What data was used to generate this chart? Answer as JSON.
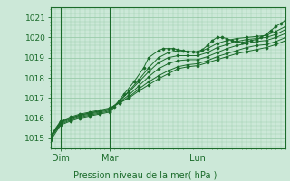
{
  "title": "",
  "xlabel": "Pression niveau de la mer( hPa )",
  "bg_color": "#cce8d8",
  "grid_color": "#99ccaa",
  "line_color": "#1a6b2a",
  "ylim": [
    1014.5,
    1021.5
  ],
  "xlim": [
    0,
    96
  ],
  "yticks": [
    1015,
    1016,
    1017,
    1018,
    1019,
    1020,
    1021
  ],
  "day_labels": [
    [
      "Dim",
      4
    ],
    [
      "Mar",
      24
    ],
    [
      "Lun",
      60
    ]
  ],
  "day_vlines": [
    4,
    24,
    60
  ],
  "series": [
    [
      0,
      1014.9,
      4,
      1015.65,
      8,
      1015.85,
      12,
      1016.0,
      16,
      1016.1,
      20,
      1016.2,
      24,
      1016.3,
      26,
      1016.55,
      28,
      1016.9,
      30,
      1017.2,
      34,
      1017.8,
      38,
      1018.5,
      40,
      1019.0,
      44,
      1019.35,
      46,
      1019.45,
      48,
      1019.45,
      50,
      1019.45,
      52,
      1019.4,
      54,
      1019.35,
      56,
      1019.3,
      58,
      1019.3,
      60,
      1019.3,
      62,
      1019.4,
      64,
      1019.6,
      66,
      1019.85,
      68,
      1020.0,
      70,
      1020.0,
      72,
      1019.95,
      74,
      1019.85,
      76,
      1019.8,
      78,
      1019.75,
      80,
      1019.8,
      82,
      1019.85,
      84,
      1019.9,
      86,
      1020.0,
      88,
      1020.15,
      90,
      1020.35,
      92,
      1020.55,
      94,
      1020.7,
      96,
      1020.85
    ],
    [
      0,
      1015.0,
      4,
      1015.7,
      8,
      1015.9,
      12,
      1016.05,
      16,
      1016.15,
      20,
      1016.25,
      24,
      1016.35,
      28,
      1016.85,
      32,
      1017.35,
      36,
      1017.9,
      40,
      1018.5,
      44,
      1019.0,
      48,
      1019.25,
      52,
      1019.35,
      56,
      1019.3,
      60,
      1019.25,
      64,
      1019.45,
      68,
      1019.7,
      72,
      1019.85,
      76,
      1019.95,
      80,
      1020.0,
      84,
      1020.05,
      88,
      1020.1,
      92,
      1020.3,
      96,
      1020.55
    ],
    [
      0,
      1015.05,
      4,
      1015.75,
      8,
      1015.95,
      12,
      1016.1,
      16,
      1016.2,
      20,
      1016.3,
      24,
      1016.4,
      28,
      1016.85,
      32,
      1017.3,
      36,
      1017.8,
      40,
      1018.3,
      44,
      1018.75,
      48,
      1019.0,
      52,
      1019.1,
      56,
      1019.1,
      60,
      1019.1,
      64,
      1019.25,
      68,
      1019.5,
      72,
      1019.65,
      76,
      1019.8,
      80,
      1019.9,
      84,
      1019.95,
      88,
      1020.0,
      92,
      1020.15,
      96,
      1020.4
    ],
    [
      0,
      1015.1,
      4,
      1015.8,
      8,
      1016.0,
      12,
      1016.15,
      16,
      1016.25,
      20,
      1016.35,
      24,
      1016.45,
      28,
      1016.8,
      32,
      1017.15,
      36,
      1017.6,
      40,
      1018.05,
      44,
      1018.45,
      48,
      1018.7,
      52,
      1018.85,
      56,
      1018.9,
      60,
      1018.9,
      64,
      1019.05,
      68,
      1019.25,
      72,
      1019.45,
      76,
      1019.6,
      80,
      1019.7,
      84,
      1019.8,
      88,
      1019.85,
      92,
      1020.0,
      96,
      1020.2
    ],
    [
      0,
      1015.1,
      4,
      1015.8,
      8,
      1016.0,
      12,
      1016.15,
      16,
      1016.25,
      20,
      1016.35,
      24,
      1016.45,
      28,
      1016.75,
      32,
      1017.05,
      36,
      1017.45,
      40,
      1017.8,
      44,
      1018.1,
      48,
      1018.35,
      52,
      1018.55,
      56,
      1018.65,
      60,
      1018.7,
      64,
      1018.85,
      68,
      1019.05,
      72,
      1019.2,
      76,
      1019.35,
      80,
      1019.5,
      84,
      1019.6,
      88,
      1019.65,
      92,
      1019.8,
      96,
      1020.0
    ],
    [
      0,
      1015.15,
      4,
      1015.85,
      8,
      1016.05,
      12,
      1016.2,
      16,
      1016.3,
      20,
      1016.4,
      24,
      1016.5,
      28,
      1016.75,
      32,
      1017.0,
      36,
      1017.35,
      40,
      1017.65,
      44,
      1017.95,
      48,
      1018.2,
      52,
      1018.45,
      56,
      1018.55,
      60,
      1018.6,
      64,
      1018.75,
      68,
      1018.9,
      72,
      1019.05,
      76,
      1019.2,
      80,
      1019.3,
      84,
      1019.4,
      88,
      1019.5,
      92,
      1019.65,
      96,
      1019.85
    ]
  ]
}
